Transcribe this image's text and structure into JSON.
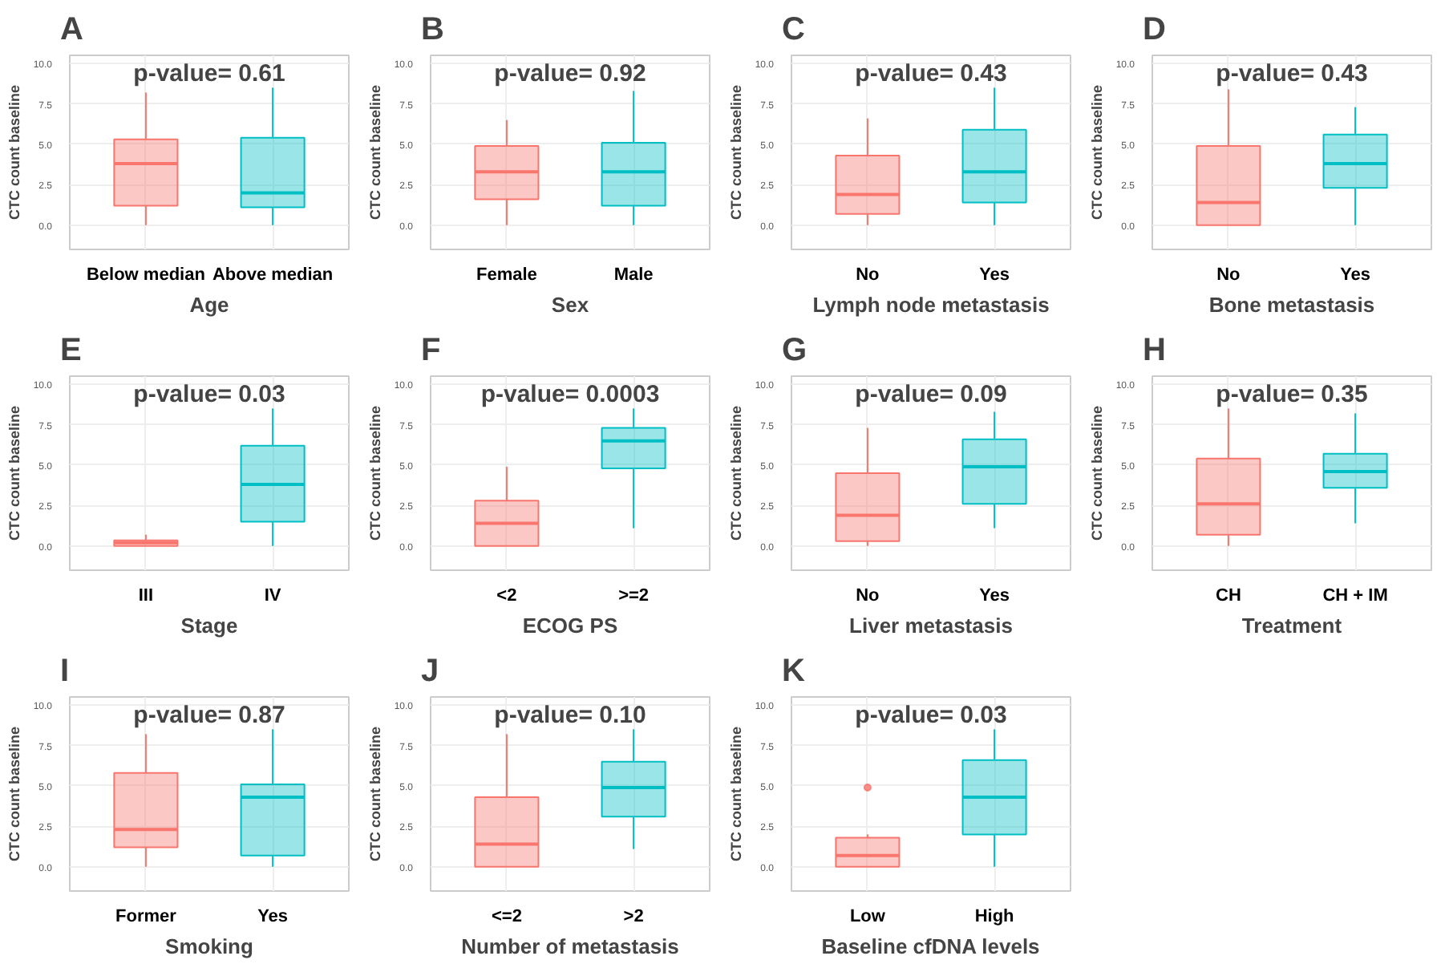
{
  "chart_data": [
    {
      "type": "box",
      "title": "p-value= 0.61",
      "xlabel": "Age",
      "ylabel": "CTC count baseline",
      "annotations": [
        "A"
      ],
      "categories": [
        "Below median",
        "Above median"
      ],
      "colors": [
        "#f8766d",
        "#00bfc4"
      ],
      "ylim": [
        -1.5,
        10.5
      ],
      "yticks": [
        {
          "value": 0,
          "label": "0.0"
        },
        {
          "value": 2.5,
          "label": "2.5"
        },
        {
          "value": 5,
          "label": "5.0"
        },
        {
          "value": 7.5,
          "label": "7.5"
        },
        {
          "value": 10,
          "label": "10.0"
        }
      ],
      "grid": true,
      "boxes": [
        {
          "low": 0,
          "q1": 1.2,
          "median": 3.8,
          "q3": 5.3,
          "high": 8.2
        },
        {
          "low": 0,
          "q1": 1.1,
          "median": 2.0,
          "q3": 5.4,
          "high": 8.5
        }
      ]
    },
    {
      "type": "box",
      "title": "p-value= 0.92",
      "xlabel": "Sex",
      "ylabel": "CTC count baseline",
      "annotations": [
        "B"
      ],
      "categories": [
        "Female",
        "Male"
      ],
      "colors": [
        "#f8766d",
        "#00bfc4"
      ],
      "ylim": [
        -1.5,
        10.5
      ],
      "yticks": [
        {
          "value": 0,
          "label": "0.0"
        },
        {
          "value": 2.5,
          "label": "2.5"
        },
        {
          "value": 5,
          "label": "5.0"
        },
        {
          "value": 7.5,
          "label": "7.5"
        },
        {
          "value": 10,
          "label": "10.0"
        }
      ],
      "grid": true,
      "boxes": [
        {
          "low": 0,
          "q1": 1.6,
          "median": 3.3,
          "q3": 4.9,
          "high": 6.5
        },
        {
          "low": 0,
          "q1": 1.2,
          "median": 3.3,
          "q3": 5.1,
          "high": 8.3
        }
      ]
    },
    {
      "type": "box",
      "title": "p-value= 0.43",
      "xlabel": "Lymph node metastasis",
      "ylabel": "CTC count baseline",
      "annotations": [
        "C"
      ],
      "categories": [
        "No",
        "Yes"
      ],
      "colors": [
        "#f8766d",
        "#00bfc4"
      ],
      "ylim": [
        -1.5,
        10.5
      ],
      "yticks": [
        {
          "value": 0,
          "label": "0.0"
        },
        {
          "value": 2.5,
          "label": "2.5"
        },
        {
          "value": 5,
          "label": "5.0"
        },
        {
          "value": 7.5,
          "label": "7.5"
        },
        {
          "value": 10,
          "label": "10.0"
        }
      ],
      "grid": true,
      "boxes": [
        {
          "low": 0,
          "q1": 0.7,
          "median": 1.9,
          "q3": 4.3,
          "high": 6.6
        },
        {
          "low": 0,
          "q1": 1.4,
          "median": 3.3,
          "q3": 5.9,
          "high": 8.5
        }
      ]
    },
    {
      "type": "box",
      "title": "p-value= 0.43",
      "xlabel": "Bone metastasis",
      "ylabel": "CTC count baseline",
      "annotations": [
        "D"
      ],
      "categories": [
        "No",
        "Yes"
      ],
      "colors": [
        "#f8766d",
        "#00bfc4"
      ],
      "ylim": [
        -1.5,
        10.5
      ],
      "yticks": [
        {
          "value": 0,
          "label": "0.0"
        },
        {
          "value": 2.5,
          "label": "2.5"
        },
        {
          "value": 5,
          "label": "5.0"
        },
        {
          "value": 7.5,
          "label": "7.5"
        },
        {
          "value": 10,
          "label": "10.0"
        }
      ],
      "grid": true,
      "boxes": [
        {
          "low": 0,
          "q1": 0,
          "median": 1.4,
          "q3": 4.9,
          "high": 8.4
        },
        {
          "low": 0,
          "q1": 2.3,
          "median": 3.8,
          "q3": 5.6,
          "high": 7.3
        }
      ]
    },
    {
      "type": "box",
      "title": "p-value= 0.03",
      "xlabel": "Stage",
      "ylabel": "CTC count baseline",
      "annotations": [
        "E"
      ],
      "categories": [
        "III",
        "IV"
      ],
      "colors": [
        "#f8766d",
        "#00bfc4"
      ],
      "ylim": [
        -1.5,
        10.5
      ],
      "yticks": [
        {
          "value": 0,
          "label": "0.0"
        },
        {
          "value": 2.5,
          "label": "2.5"
        },
        {
          "value": 5,
          "label": "5.0"
        },
        {
          "value": 7.5,
          "label": "7.5"
        },
        {
          "value": 10,
          "label": "10.0"
        }
      ],
      "grid": true,
      "boxes": [
        {
          "low": 0,
          "q1": 0,
          "median": 0.2,
          "q3": 0.35,
          "high": 0.7
        },
        {
          "low": 0,
          "q1": 1.5,
          "median": 3.8,
          "q3": 6.2,
          "high": 8.5
        }
      ]
    },
    {
      "type": "box",
      "title": "p-value= 0.0003",
      "xlabel": "ECOG PS",
      "ylabel": "CTC count baseline",
      "annotations": [
        "F"
      ],
      "categories": [
        "<2",
        ">=2"
      ],
      "colors": [
        "#f8766d",
        "#00bfc4"
      ],
      "ylim": [
        -1.5,
        10.5
      ],
      "yticks": [
        {
          "value": 0,
          "label": "0.0"
        },
        {
          "value": 2.5,
          "label": "2.5"
        },
        {
          "value": 5,
          "label": "5.0"
        },
        {
          "value": 7.5,
          "label": "7.5"
        },
        {
          "value": 10,
          "label": "10.0"
        }
      ],
      "grid": true,
      "boxes": [
        {
          "low": 0,
          "q1": 0,
          "median": 1.4,
          "q3": 2.8,
          "high": 4.9
        },
        {
          "low": 1.1,
          "q1": 4.8,
          "median": 6.5,
          "q3": 7.3,
          "high": 8.5
        }
      ]
    },
    {
      "type": "box",
      "title": "p-value= 0.09",
      "xlabel": "Liver metastasis",
      "ylabel": "CTC count baseline",
      "annotations": [
        "G"
      ],
      "categories": [
        "No",
        "Yes"
      ],
      "colors": [
        "#f8766d",
        "#00bfc4"
      ],
      "ylim": [
        -1.5,
        10.5
      ],
      "yticks": [
        {
          "value": 0,
          "label": "0.0"
        },
        {
          "value": 2.5,
          "label": "2.5"
        },
        {
          "value": 5,
          "label": "5.0"
        },
        {
          "value": 7.5,
          "label": "7.5"
        },
        {
          "value": 10,
          "label": "10.0"
        }
      ],
      "grid": true,
      "boxes": [
        {
          "low": 0,
          "q1": 0.3,
          "median": 1.9,
          "q3": 4.5,
          "high": 7.3
        },
        {
          "low": 1.1,
          "q1": 2.6,
          "median": 4.9,
          "q3": 6.6,
          "high": 8.3
        }
      ]
    },
    {
      "type": "box",
      "title": "p-value= 0.35",
      "xlabel": "Treatment",
      "ylabel": "CTC count baseline",
      "annotations": [
        "H"
      ],
      "categories": [
        "CH",
        "CH + IM"
      ],
      "colors": [
        "#f8766d",
        "#00bfc4"
      ],
      "ylim": [
        -1.5,
        10.5
      ],
      "yticks": [
        {
          "value": 0,
          "label": "0.0"
        },
        {
          "value": 2.5,
          "label": "2.5"
        },
        {
          "value": 5,
          "label": "5.0"
        },
        {
          "value": 7.5,
          "label": "7.5"
        },
        {
          "value": 10,
          "label": "10.0"
        }
      ],
      "grid": true,
      "boxes": [
        {
          "low": 0,
          "q1": 0.7,
          "median": 2.6,
          "q3": 5.4,
          "high": 8.5
        },
        {
          "low": 1.4,
          "q1": 3.6,
          "median": 4.6,
          "q3": 5.7,
          "high": 8.2
        }
      ]
    },
    {
      "type": "box",
      "title": "p-value= 0.87",
      "xlabel": "Smoking",
      "ylabel": "CTC count baseline",
      "annotations": [
        "I"
      ],
      "categories": [
        "Former",
        "Yes"
      ],
      "colors": [
        "#f8766d",
        "#00bfc4"
      ],
      "ylim": [
        -1.5,
        10.5
      ],
      "yticks": [
        {
          "value": 0,
          "label": "0.0"
        },
        {
          "value": 2.5,
          "label": "2.5"
        },
        {
          "value": 5,
          "label": "5.0"
        },
        {
          "value": 7.5,
          "label": "7.5"
        },
        {
          "value": 10,
          "label": "10.0"
        }
      ],
      "grid": true,
      "boxes": [
        {
          "low": 0,
          "q1": 1.2,
          "median": 2.3,
          "q3": 5.8,
          "high": 8.2
        },
        {
          "low": 0,
          "q1": 0.7,
          "median": 4.3,
          "q3": 5.1,
          "high": 8.5
        }
      ]
    },
    {
      "type": "box",
      "title": "p-value= 0.10",
      "xlabel": "Number of metastasis",
      "ylabel": "CTC count baseline",
      "annotations": [
        "J"
      ],
      "categories": [
        "<=2",
        ">2"
      ],
      "colors": [
        "#f8766d",
        "#00bfc4"
      ],
      "ylim": [
        -1.5,
        10.5
      ],
      "yticks": [
        {
          "value": 0,
          "label": "0.0"
        },
        {
          "value": 2.5,
          "label": "2.5"
        },
        {
          "value": 5,
          "label": "5.0"
        },
        {
          "value": 7.5,
          "label": "7.5"
        },
        {
          "value": 10,
          "label": "10.0"
        }
      ],
      "grid": true,
      "boxes": [
        {
          "low": 0,
          "q1": 0,
          "median": 1.4,
          "q3": 4.3,
          "high": 8.2
        },
        {
          "low": 1.1,
          "q1": 3.1,
          "median": 4.9,
          "q3": 6.5,
          "high": 8.5
        }
      ]
    },
    {
      "type": "box",
      "title": "p-value= 0.03",
      "xlabel": "Baseline cfDNA levels",
      "ylabel": "CTC count baseline",
      "annotations": [
        "K"
      ],
      "categories": [
        "Low",
        "High"
      ],
      "colors": [
        "#f8766d",
        "#00bfc4"
      ],
      "ylim": [
        -1.5,
        10.5
      ],
      "yticks": [
        {
          "value": 0,
          "label": "0.0"
        },
        {
          "value": 2.5,
          "label": "2.5"
        },
        {
          "value": 5,
          "label": "5.0"
        },
        {
          "value": 7.5,
          "label": "7.5"
        },
        {
          "value": 10,
          "label": "10.0"
        }
      ],
      "grid": true,
      "boxes": [
        {
          "low": 0,
          "q1": 0,
          "median": 0.7,
          "q3": 1.8,
          "high": 2.0,
          "outliers": [
            4.9
          ]
        },
        {
          "low": 0,
          "q1": 2.0,
          "median": 4.3,
          "q3": 6.6,
          "high": 8.5
        }
      ]
    }
  ]
}
